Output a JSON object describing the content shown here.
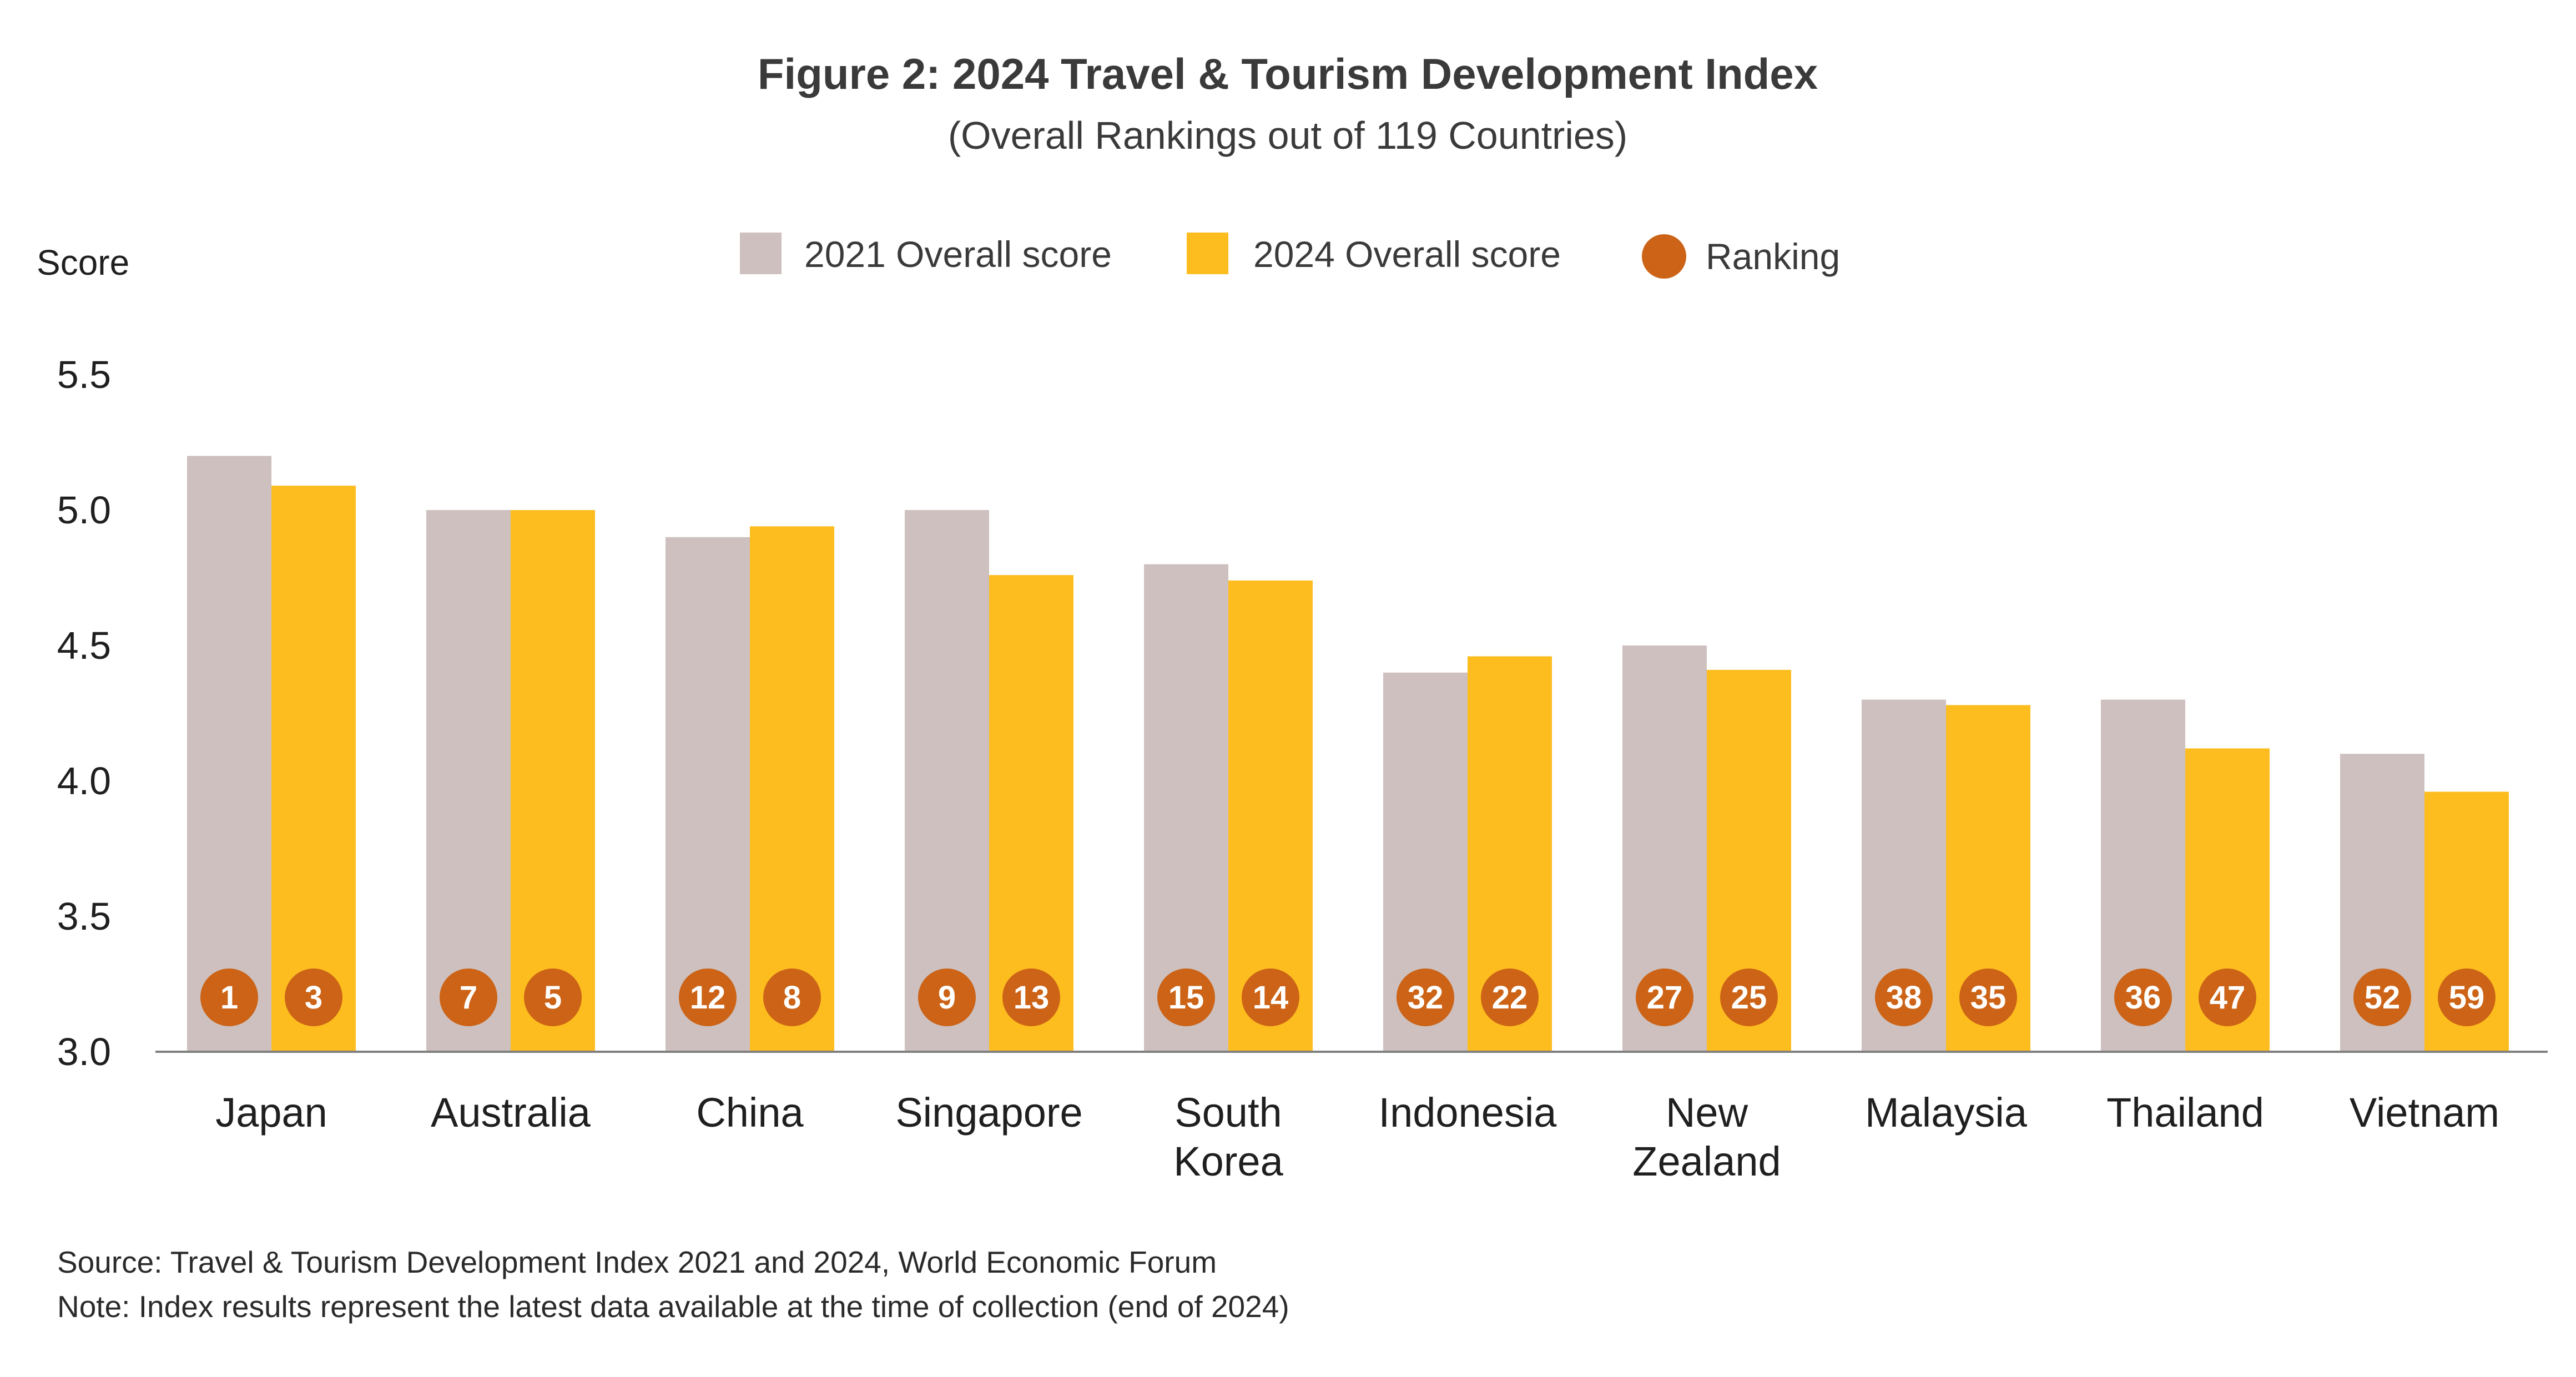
{
  "chart_data": {
    "type": "bar",
    "title": "Figure 2: 2024 Travel & Tourism Development Index",
    "subtitle": "(Overall Rankings out of 119 Countries)",
    "ylabel": "Score",
    "xlabel": "",
    "ylim": [
      3.0,
      5.5
    ],
    "yticks": [
      "3.0",
      "3.5",
      "4.0",
      "4.5",
      "5.0",
      "5.5"
    ],
    "ytick_values": [
      3.0,
      3.5,
      4.0,
      4.5,
      5.0,
      5.5
    ],
    "grid": false,
    "legend_position": "top-center",
    "categories": [
      [
        "Japan"
      ],
      [
        "Australia"
      ],
      [
        "China"
      ],
      [
        "Singapore"
      ],
      [
        "South",
        "Korea"
      ],
      [
        "Indonesia"
      ],
      [
        "New",
        "Zealand"
      ],
      [
        "Malaysia"
      ],
      [
        "Thailand"
      ],
      [
        "Vietnam"
      ]
    ],
    "series": [
      {
        "name": "2021 Overall score",
        "color": "#cdc0be",
        "values": [
          5.2,
          5.0,
          4.9,
          5.0,
          4.8,
          4.4,
          4.5,
          4.3,
          4.3,
          4.1
        ],
        "rankings": [
          "1",
          "7",
          "12",
          "9",
          "15",
          "32",
          "27",
          "38",
          "36",
          "52"
        ]
      },
      {
        "name": "2024 Overall score",
        "color": "#fdbd1f",
        "values": [
          5.09,
          5.0,
          4.94,
          4.76,
          4.74,
          4.46,
          4.41,
          4.28,
          4.12,
          3.96
        ],
        "rankings": [
          "3",
          "5",
          "8",
          "13",
          "14",
          "22",
          "25",
          "35",
          "47",
          "59"
        ]
      }
    ],
    "ranking_legend": {
      "label": "Ranking",
      "color": "#cc6316"
    },
    "axis_color": "#7f7f7f"
  },
  "footnotes": {
    "source": "Source: Travel & Tourism Development Index 2021 and 2024, World Economic Forum",
    "note": "Note: Index results represent the latest data available at the time of collection (end of 2024)"
  }
}
